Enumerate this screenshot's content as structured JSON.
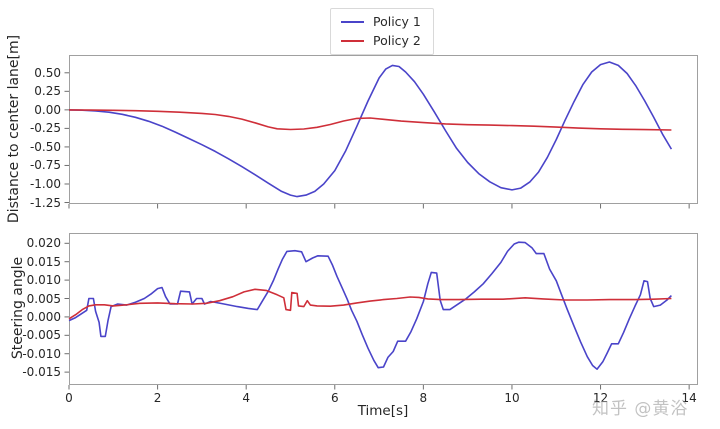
{
  "legend": {
    "entries": [
      {
        "label": "Policy 1",
        "color": "#4a44c9"
      },
      {
        "label": "Policy 2",
        "color": "#cf2f39"
      }
    ]
  },
  "watermark": "知乎 @黄浴",
  "colors": {
    "policy1": "#4a44c9",
    "policy2": "#cf2f39",
    "spine": "#a0a0a0",
    "tick": "#6e6e6e",
    "text": "#262626"
  },
  "chart_data": [
    {
      "type": "line",
      "title": "",
      "ylabel": "Distance to center lane[m]",
      "xlabel": "",
      "xlim": [
        0,
        14.2
      ],
      "ylim": [
        -1.27,
        0.74
      ],
      "grid": false,
      "legend_position": "upper center above axes",
      "ytick_values": [
        0.5,
        0.25,
        0.0,
        -0.25,
        -0.5,
        -0.75,
        -1.0,
        -1.25
      ],
      "ytick_labels": [
        "0.50",
        "0.25",
        "0.00",
        "-0.25",
        "-0.50",
        "-0.75",
        "-1.00",
        "-1.25"
      ],
      "xtick_values": [
        0,
        2,
        4,
        6,
        8,
        10,
        12,
        14
      ],
      "xtick_labels": [
        "0",
        "2",
        "4",
        "6",
        "8",
        "10",
        "12",
        "14"
      ],
      "show_xtick_labels": false,
      "series": [
        {
          "name": "Policy 1",
          "color": "#4a44c9",
          "points": [
            [
              0,
              0
            ],
            [
              0.3,
              -0.005
            ],
            [
              0.6,
              -0.015
            ],
            [
              0.9,
              -0.032
            ],
            [
              1.2,
              -0.06
            ],
            [
              1.5,
              -0.1
            ],
            [
              1.8,
              -0.155
            ],
            [
              2.1,
              -0.22
            ],
            [
              2.4,
              -0.3
            ],
            [
              2.7,
              -0.385
            ],
            [
              3.0,
              -0.47
            ],
            [
              3.3,
              -0.56
            ],
            [
              3.6,
              -0.66
            ],
            [
              3.9,
              -0.765
            ],
            [
              4.2,
              -0.875
            ],
            [
              4.5,
              -0.99
            ],
            [
              4.8,
              -1.1
            ],
            [
              5.0,
              -1.15
            ],
            [
              5.15,
              -1.17
            ],
            [
              5.35,
              -1.15
            ],
            [
              5.55,
              -1.1
            ],
            [
              5.75,
              -1.0
            ],
            [
              6.0,
              -0.82
            ],
            [
              6.25,
              -0.55
            ],
            [
              6.5,
              -0.22
            ],
            [
              6.75,
              0.12
            ],
            [
              7.0,
              0.43
            ],
            [
              7.15,
              0.55
            ],
            [
              7.3,
              0.6
            ],
            [
              7.45,
              0.585
            ],
            [
              7.6,
              0.51
            ],
            [
              7.8,
              0.38
            ],
            [
              8.0,
              0.21
            ],
            [
              8.25,
              -0.03
            ],
            [
              8.5,
              -0.28
            ],
            [
              8.75,
              -0.52
            ],
            [
              9.0,
              -0.71
            ],
            [
              9.25,
              -0.86
            ],
            [
              9.5,
              -0.97
            ],
            [
              9.75,
              -1.05
            ],
            [
              10.0,
              -1.08
            ],
            [
              10.2,
              -1.055
            ],
            [
              10.4,
              -0.975
            ],
            [
              10.6,
              -0.84
            ],
            [
              10.8,
              -0.64
            ],
            [
              11.0,
              -0.4
            ],
            [
              11.2,
              -0.14
            ],
            [
              11.4,
              0.11
            ],
            [
              11.6,
              0.34
            ],
            [
              11.8,
              0.51
            ],
            [
              12.0,
              0.61
            ],
            [
              12.2,
              0.645
            ],
            [
              12.4,
              0.6
            ],
            [
              12.6,
              0.49
            ],
            [
              12.8,
              0.32
            ],
            [
              13.0,
              0.12
            ],
            [
              13.2,
              -0.1
            ],
            [
              13.4,
              -0.33
            ],
            [
              13.6,
              -0.53
            ]
          ]
        },
        {
          "name": "Policy 2",
          "color": "#cf2f39",
          "points": [
            [
              0,
              0
            ],
            [
              0.5,
              -0.003
            ],
            [
              1.0,
              -0.006
            ],
            [
              1.5,
              -0.012
            ],
            [
              2.0,
              -0.02
            ],
            [
              2.5,
              -0.032
            ],
            [
              3.0,
              -0.048
            ],
            [
              3.3,
              -0.062
            ],
            [
              3.6,
              -0.088
            ],
            [
              3.9,
              -0.125
            ],
            [
              4.2,
              -0.175
            ],
            [
              4.5,
              -0.23
            ],
            [
              4.7,
              -0.255
            ],
            [
              5.0,
              -0.265
            ],
            [
              5.3,
              -0.258
            ],
            [
              5.6,
              -0.235
            ],
            [
              5.9,
              -0.198
            ],
            [
              6.2,
              -0.15
            ],
            [
              6.5,
              -0.115
            ],
            [
              6.8,
              -0.11
            ],
            [
              7.1,
              -0.127
            ],
            [
              7.5,
              -0.152
            ],
            [
              8.0,
              -0.172
            ],
            [
              8.5,
              -0.19
            ],
            [
              9.0,
              -0.2
            ],
            [
              9.5,
              -0.206
            ],
            [
              10.0,
              -0.212
            ],
            [
              10.5,
              -0.22
            ],
            [
              11.0,
              -0.232
            ],
            [
              11.5,
              -0.246
            ],
            [
              12.0,
              -0.256
            ],
            [
              12.5,
              -0.262
            ],
            [
              13.0,
              -0.267
            ],
            [
              13.6,
              -0.272
            ]
          ]
        }
      ]
    },
    {
      "type": "line",
      "title": "",
      "ylabel": "Steering angle",
      "xlabel": "Time[s]",
      "xlim": [
        0,
        14.2
      ],
      "ylim": [
        -0.0185,
        0.0228
      ],
      "grid": false,
      "ytick_values": [
        0.02,
        0.015,
        0.01,
        0.005,
        0.0,
        -0.005,
        -0.01,
        -0.015
      ],
      "ytick_labels": [
        "0.020",
        "0.015",
        "0.010",
        "0.005",
        "0.000",
        "-0.005",
        "-0.010",
        "-0.015"
      ],
      "xtick_values": [
        0,
        2,
        4,
        6,
        8,
        10,
        12,
        14
      ],
      "xtick_labels": [
        "0",
        "2",
        "4",
        "6",
        "8",
        "10",
        "12",
        "14"
      ],
      "show_xtick_labels": true,
      "series": [
        {
          "name": "Policy 1",
          "color": "#4a44c9",
          "points": [
            [
              0,
              -0.001
            ],
            [
              0.15,
              -0.0002
            ],
            [
              0.3,
              0.001
            ],
            [
              0.4,
              0.0018
            ],
            [
              0.45,
              0.005
            ],
            [
              0.55,
              0.005
            ],
            [
              0.6,
              0.0015
            ],
            [
              0.68,
              -0.0015
            ],
            [
              0.72,
              -0.0053
            ],
            [
              0.82,
              -0.0053
            ],
            [
              0.88,
              -0.001
            ],
            [
              0.95,
              0.0028
            ],
            [
              1.1,
              0.0035
            ],
            [
              1.3,
              0.0032
            ],
            [
              1.5,
              0.004
            ],
            [
              1.7,
              0.005
            ],
            [
              1.85,
              0.0062
            ],
            [
              2.0,
              0.0077
            ],
            [
              2.1,
              0.008
            ],
            [
              2.18,
              0.0055
            ],
            [
              2.28,
              0.0035
            ],
            [
              2.45,
              0.0035
            ],
            [
              2.52,
              0.007
            ],
            [
              2.72,
              0.0068
            ],
            [
              2.78,
              0.0035
            ],
            [
              2.88,
              0.005
            ],
            [
              3.0,
              0.005
            ],
            [
              3.06,
              0.0035
            ],
            [
              3.2,
              0.0042
            ],
            [
              3.5,
              0.0035
            ],
            [
              3.8,
              0.0028
            ],
            [
              4.05,
              0.0023
            ],
            [
              4.25,
              0.002
            ],
            [
              4.35,
              0.004
            ],
            [
              4.5,
              0.007
            ],
            [
              4.62,
              0.01
            ],
            [
              4.72,
              0.013
            ],
            [
              4.82,
              0.0157
            ],
            [
              4.92,
              0.0178
            ],
            [
              5.1,
              0.018
            ],
            [
              5.25,
              0.0177
            ],
            [
              5.35,
              0.015
            ],
            [
              5.5,
              0.016
            ],
            [
              5.62,
              0.0166
            ],
            [
              5.85,
              0.0165
            ],
            [
              5.95,
              0.014
            ],
            [
              6.05,
              0.011
            ],
            [
              6.17,
              0.0078
            ],
            [
              6.28,
              0.0048
            ],
            [
              6.38,
              0.0018
            ],
            [
              6.5,
              -0.0012
            ],
            [
              6.62,
              -0.0048
            ],
            [
              6.75,
              -0.0085
            ],
            [
              6.88,
              -0.0118
            ],
            [
              6.98,
              -0.0138
            ],
            [
              7.1,
              -0.0136
            ],
            [
              7.2,
              -0.011
            ],
            [
              7.32,
              -0.0094
            ],
            [
              7.42,
              -0.0066
            ],
            [
              7.6,
              -0.0066
            ],
            [
              7.72,
              -0.004
            ],
            [
              7.85,
              -0.0005
            ],
            [
              8.0,
              0.0042
            ],
            [
              8.1,
              0.009
            ],
            [
              8.18,
              0.0121
            ],
            [
              8.3,
              0.0119
            ],
            [
              8.38,
              0.0045
            ],
            [
              8.45,
              0.002
            ],
            [
              8.6,
              0.002
            ],
            [
              8.75,
              0.0032
            ],
            [
              8.95,
              0.0048
            ],
            [
              9.15,
              0.0068
            ],
            [
              9.35,
              0.009
            ],
            [
              9.55,
              0.0118
            ],
            [
              9.75,
              0.0148
            ],
            [
              9.9,
              0.0178
            ],
            [
              10.05,
              0.0198
            ],
            [
              10.15,
              0.0203
            ],
            [
              10.3,
              0.0202
            ],
            [
              10.45,
              0.0188
            ],
            [
              10.55,
              0.0172
            ],
            [
              10.72,
              0.0172
            ],
            [
              10.85,
              0.013
            ],
            [
              11.0,
              0.0098
            ],
            [
              11.12,
              0.006
            ],
            [
              11.25,
              0.002
            ],
            [
              11.4,
              -0.0025
            ],
            [
              11.55,
              -0.0068
            ],
            [
              11.7,
              -0.0108
            ],
            [
              11.82,
              -0.0132
            ],
            [
              11.92,
              -0.0142
            ],
            [
              12.05,
              -0.0122
            ],
            [
              12.15,
              -0.0098
            ],
            [
              12.25,
              -0.0073
            ],
            [
              12.4,
              -0.0073
            ],
            [
              12.52,
              -0.0042
            ],
            [
              12.65,
              -0.0005
            ],
            [
              12.78,
              0.003
            ],
            [
              12.9,
              0.006
            ],
            [
              12.98,
              0.0098
            ],
            [
              13.06,
              0.0096
            ],
            [
              13.12,
              0.005
            ],
            [
              13.2,
              0.0028
            ],
            [
              13.35,
              0.0032
            ],
            [
              13.5,
              0.0046
            ],
            [
              13.6,
              0.0058
            ]
          ]
        },
        {
          "name": "Policy 2",
          "color": "#cf2f39",
          "points": [
            [
              0,
              -0.0005
            ],
            [
              0.15,
              0.0006
            ],
            [
              0.3,
              0.002
            ],
            [
              0.45,
              0.003
            ],
            [
              0.6,
              0.0033
            ],
            [
              0.8,
              0.0033
            ],
            [
              1.0,
              0.003
            ],
            [
              1.3,
              0.0033
            ],
            [
              1.6,
              0.0037
            ],
            [
              2.0,
              0.0038
            ],
            [
              2.4,
              0.0036
            ],
            [
              2.8,
              0.0035
            ],
            [
              3.1,
              0.0037
            ],
            [
              3.4,
              0.0044
            ],
            [
              3.7,
              0.0055
            ],
            [
              3.95,
              0.0068
            ],
            [
              4.2,
              0.0075
            ],
            [
              4.45,
              0.0072
            ],
            [
              4.7,
              0.006
            ],
            [
              4.85,
              0.0052
            ],
            [
              4.9,
              0.002
            ],
            [
              5.0,
              0.0018
            ],
            [
              5.03,
              0.0066
            ],
            [
              5.15,
              0.0064
            ],
            [
              5.18,
              0.003
            ],
            [
              5.3,
              0.0028
            ],
            [
              5.38,
              0.0044
            ],
            [
              5.45,
              0.0032
            ],
            [
              5.6,
              0.003
            ],
            [
              5.9,
              0.0029
            ],
            [
              6.2,
              0.0032
            ],
            [
              6.5,
              0.0038
            ],
            [
              6.8,
              0.0043
            ],
            [
              7.1,
              0.0047
            ],
            [
              7.4,
              0.005
            ],
            [
              7.7,
              0.0054
            ],
            [
              7.9,
              0.0053
            ],
            [
              8.1,
              0.0049
            ],
            [
              8.4,
              0.0047
            ],
            [
              8.8,
              0.0047
            ],
            [
              9.3,
              0.0048
            ],
            [
              9.8,
              0.0048
            ],
            [
              10.3,
              0.0052
            ],
            [
              10.7,
              0.0049
            ],
            [
              11.2,
              0.0046
            ],
            [
              11.7,
              0.0046
            ],
            [
              12.2,
              0.0047
            ],
            [
              12.7,
              0.0047
            ],
            [
              13.2,
              0.0048
            ],
            [
              13.6,
              0.005
            ]
          ]
        }
      ]
    }
  ]
}
